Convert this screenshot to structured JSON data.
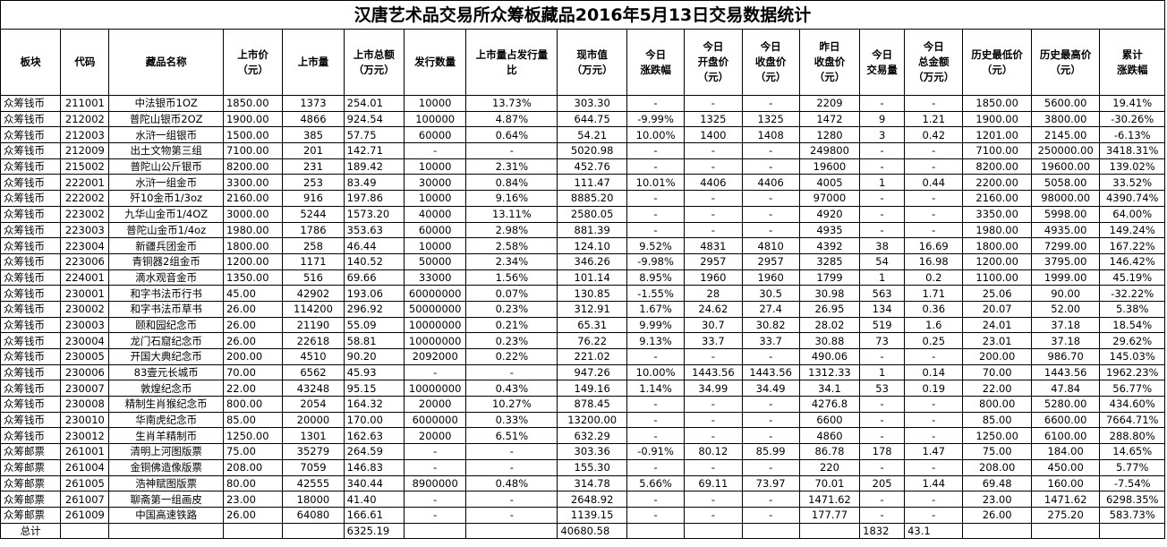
{
  "title": "汉唐艺术品交易所众筹板藏品2016年5月13日交易数据统计",
  "headers": [
    [
      "板块"
    ],
    [
      "代码"
    ],
    [
      "藏品名称"
    ],
    [
      "上市价",
      "（元）"
    ],
    [
      "上市量"
    ],
    [
      "上市总额",
      "（万元）"
    ],
    [
      "发行数量"
    ],
    [
      "上市量占发行量",
      "比"
    ],
    [
      "现市值",
      "（万元）"
    ],
    [
      "今日",
      "涨跌幅"
    ],
    [
      "今日",
      "开盘价",
      "（元）"
    ],
    [
      "今日",
      "收盘价",
      "（元）"
    ],
    [
      "昨日",
      "收盘价",
      "（元）"
    ],
    [
      "今日",
      "交易量"
    ],
    [
      "今日",
      "总金额",
      "（万元）"
    ],
    [
      "历史最低价",
      "（元）"
    ],
    [
      "历史最高价",
      "（元）"
    ],
    [
      "累计",
      "涨跌幅"
    ]
  ],
  "rows": [
    [
      "众筹钱币",
      "211001",
      "中法银币1OZ",
      "1850.00",
      "1373",
      "254.01",
      "10000",
      "13.73%",
      "303.30",
      "-",
      "-",
      "-",
      "2209",
      "-",
      "-",
      "1850.00",
      "5600.00",
      "19.41%"
    ],
    [
      "众筹钱币",
      "212002",
      "普陀山银币2OZ",
      "1900.00",
      "4866",
      "924.54",
      "100000",
      "4.87%",
      "644.75",
      "-9.99%",
      "1325",
      "1325",
      "1472",
      "9",
      "1.21",
      "1900.00",
      "3800.00",
      "-30.26%"
    ],
    [
      "众筹钱币",
      "212003",
      "水浒一组银币",
      "1500.00",
      "385",
      "57.75",
      "60000",
      "0.64%",
      "54.21",
      "10.00%",
      "1400",
      "1408",
      "1280",
      "3",
      "0.42",
      "1201.00",
      "2145.00",
      "-6.13%"
    ],
    [
      "众筹钱币",
      "212009",
      "出土文物第三组",
      "7100.00",
      "201",
      "142.71",
      "-",
      "-",
      "5020.98",
      "-",
      "-",
      "-",
      "249800",
      "-",
      "-",
      "7100.00",
      "250000.00",
      "3418.31%"
    ],
    [
      "众筹钱币",
      "215002",
      "普陀山公斤银币",
      "8200.00",
      "231",
      "189.42",
      "10000",
      "2.31%",
      "452.76",
      "-",
      "-",
      "-",
      "19600",
      "-",
      "-",
      "8200.00",
      "19600.00",
      "139.02%"
    ],
    [
      "众筹钱币",
      "222001",
      "水浒一组金币",
      "3300.00",
      "253",
      "83.49",
      "30000",
      "0.84%",
      "111.47",
      "10.01%",
      "4406",
      "4406",
      "4005",
      "1",
      "0.44",
      "2200.00",
      "5058.00",
      "33.52%"
    ],
    [
      "众筹钱币",
      "222002",
      "歼10金币1/3oz",
      "2160.00",
      "916",
      "197.86",
      "10000",
      "9.16%",
      "8885.20",
      "-",
      "-",
      "-",
      "97000",
      "-",
      "-",
      "2160.00",
      "98000.00",
      "4390.74%"
    ],
    [
      "众筹钱币",
      "223002",
      "九华山金币1/4OZ",
      "3000.00",
      "5244",
      "1573.20",
      "40000",
      "13.11%",
      "2580.05",
      "-",
      "-",
      "-",
      "4920",
      "-",
      "-",
      "3350.00",
      "5998.00",
      "64.00%"
    ],
    [
      "众筹钱币",
      "223003",
      "普陀山金币1/4oz",
      "1980.00",
      "1786",
      "353.63",
      "60000",
      "2.98%",
      "881.39",
      "-",
      "-",
      "-",
      "4935",
      "-",
      "-",
      "1980.00",
      "4935.00",
      "149.24%"
    ],
    [
      "众筹钱币",
      "223004",
      "新疆兵团金币",
      "1800.00",
      "258",
      "46.44",
      "10000",
      "2.58%",
      "124.10",
      "9.52%",
      "4831",
      "4810",
      "4392",
      "38",
      "16.69",
      "1800.00",
      "7299.00",
      "167.22%"
    ],
    [
      "众筹钱币",
      "223006",
      "青铜器2组金币",
      "1200.00",
      "1171",
      "140.52",
      "50000",
      "2.34%",
      "346.26",
      "-9.98%",
      "2957",
      "2957",
      "3285",
      "54",
      "16.98",
      "1200.00",
      "3795.00",
      "146.42%"
    ],
    [
      "众筹钱币",
      "224001",
      "滴水观音金币",
      "1350.00",
      "516",
      "69.66",
      "33000",
      "1.56%",
      "101.14",
      "8.95%",
      "1960",
      "1960",
      "1799",
      "1",
      "0.2",
      "1100.00",
      "1999.00",
      "45.19%"
    ],
    [
      "众筹钱币",
      "230001",
      "和字书法币行书",
      "45.00",
      "42902",
      "193.06",
      "60000000",
      "0.07%",
      "130.85",
      "-1.55%",
      "28",
      "30.5",
      "30.98",
      "563",
      "1.71",
      "25.06",
      "90.00",
      "-32.22%"
    ],
    [
      "众筹钱币",
      "230002",
      "和字书法币草书",
      "26.00",
      "114200",
      "296.92",
      "50000000",
      "0.23%",
      "312.91",
      "1.67%",
      "24.62",
      "27.4",
      "26.95",
      "134",
      "0.36",
      "20.07",
      "52.00",
      "5.38%"
    ],
    [
      "众筹钱币",
      "230003",
      "颐和园纪念币",
      "26.00",
      "21190",
      "55.09",
      "10000000",
      "0.21%",
      "65.31",
      "9.99%",
      "30.7",
      "30.82",
      "28.02",
      "519",
      "1.6",
      "24.01",
      "37.18",
      "18.54%"
    ],
    [
      "众筹钱币",
      "230004",
      "龙门石窟纪念币",
      "26.00",
      "22618",
      "58.81",
      "10000000",
      "0.23%",
      "76.22",
      "9.13%",
      "33.7",
      "33.7",
      "30.88",
      "73",
      "0.25",
      "23.01",
      "37.18",
      "29.62%"
    ],
    [
      "众筹钱币",
      "230005",
      "开国大典纪念币",
      "200.00",
      "4510",
      "90.20",
      "2092000",
      "0.22%",
      "221.02",
      "-",
      "-",
      "-",
      "490.06",
      "-",
      "-",
      "200.00",
      "986.70",
      "145.03%"
    ],
    [
      "众筹钱币",
      "230006",
      "83壹元长城币",
      "70.00",
      "6562",
      "45.93",
      "-",
      "-",
      "947.26",
      "10.00%",
      "1443.56",
      "1443.56",
      "1312.33",
      "1",
      "0.14",
      "70.00",
      "1443.56",
      "1962.23%"
    ],
    [
      "众筹钱币",
      "230007",
      "敦煌纪念币",
      "22.00",
      "43248",
      "95.15",
      "10000000",
      "0.43%",
      "149.16",
      "1.14%",
      "34.99",
      "34.49",
      "34.1",
      "53",
      "0.19",
      "22.00",
      "47.84",
      "56.77%"
    ],
    [
      "众筹钱币",
      "230008",
      "精制生肖猴纪念币",
      "800.00",
      "2054",
      "164.32",
      "20000",
      "10.27%",
      "878.45",
      "-",
      "-",
      "-",
      "4276.8",
      "-",
      "-",
      "800.00",
      "5280.00",
      "434.60%"
    ],
    [
      "众筹钱币",
      "230010",
      "华南虎纪念币",
      "85.00",
      "20000",
      "170.00",
      "6000000",
      "0.33%",
      "13200.00",
      "-",
      "-",
      "-",
      "6600",
      "-",
      "-",
      "85.00",
      "6600.00",
      "7664.71%"
    ],
    [
      "众筹钱币",
      "230012",
      "生肖羊精制币",
      "1250.00",
      "1301",
      "162.63",
      "20000",
      "6.51%",
      "632.29",
      "-",
      "-",
      "-",
      "4860",
      "-",
      "-",
      "1250.00",
      "6100.00",
      "288.80%"
    ],
    [
      "众筹邮票",
      "261001",
      "清明上河图版票",
      "75.00",
      "35279",
      "264.59",
      "-",
      "-",
      "303.36",
      "-0.91%",
      "80.12",
      "85.99",
      "86.78",
      "178",
      "1.47",
      "75.00",
      "184.00",
      "14.65%"
    ],
    [
      "众筹邮票",
      "261004",
      "金铜佛造像版票",
      "208.00",
      "7059",
      "146.83",
      "-",
      "-",
      "155.30",
      "-",
      "-",
      "-",
      "220",
      "-",
      "-",
      "208.00",
      "450.00",
      "5.77%"
    ],
    [
      "众筹邮票",
      "261005",
      "浩神赋图版票",
      "80.00",
      "42555",
      "340.44",
      "8900000",
      "0.48%",
      "314.78",
      "5.66%",
      "69.11",
      "73.97",
      "70.01",
      "205",
      "1.44",
      "69.48",
      "160.00",
      "-7.54%"
    ],
    [
      "众筹邮票",
      "261007",
      "聊斋第一组画皮",
      "23.00",
      "18000",
      "41.40",
      "-",
      "-",
      "2648.92",
      "-",
      "-",
      "-",
      "1471.62",
      "-",
      "-",
      "23.00",
      "1471.62",
      "6298.35%"
    ],
    [
      "众筹邮票",
      "261009",
      "中国高速铁路",
      "26.00",
      "64080",
      "166.61",
      "-",
      "-",
      "1139.15",
      "-",
      "-",
      "-",
      "177.77",
      "-",
      "-",
      "26.00",
      "275.20",
      "583.73%"
    ]
  ],
  "footer": {
    "label": "总计",
    "total_amount": "6325.19",
    "total_market_value": "40680.58",
    "total_volume": "1832",
    "total_money": "43.1"
  }
}
